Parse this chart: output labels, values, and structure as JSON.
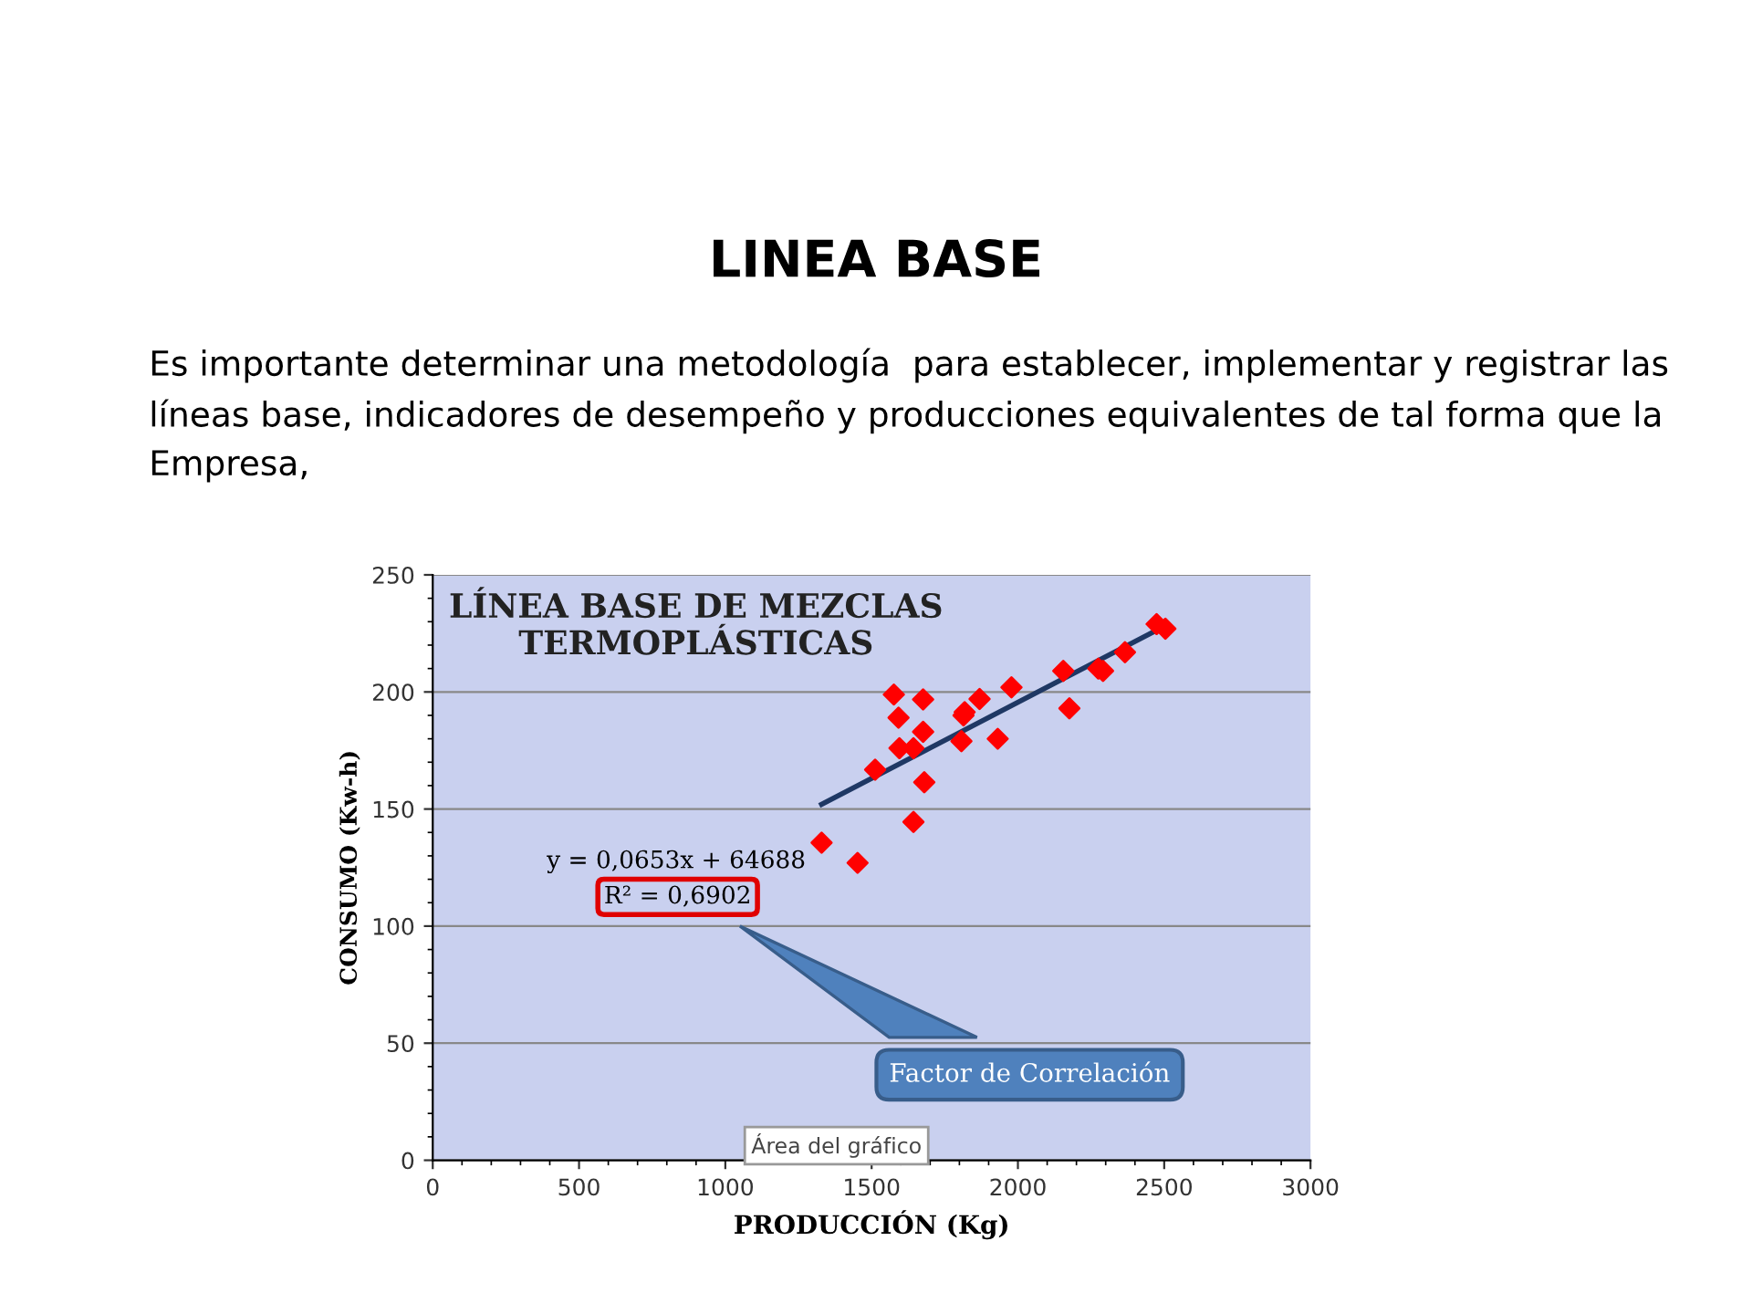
{
  "chart_data": {
    "type": "scatter",
    "title": "LÍNEA BASE DE MEZCLAS\nTERMOPLÁSTICAS",
    "xlabel": "PRODUCCIÓN (Kg)",
    "ylabel": "CONSUMO (Kw-h)",
    "annotations": [
      "LINEA BASE",
      "Es importante determinar una metodología  para establecer, implementar y registrar las líneas base, indicadores de desempeño y producciones equivalentes de tal forma que la Empresa,",
      "y = 0,0653x + 64688",
      "R² = 0,6902",
      "Factor de Correlación",
      "Área del gráfico"
    ],
    "series": [
      {
        "color": "#ff0000",
        "marker": "diamond",
        "x": [
          1329,
          1452,
          1512,
          1576,
          1592,
          1595,
          1643,
          1643,
          1676,
          1676,
          1680,
          1807,
          1814,
          1818,
          1869,
          1931,
          1978,
          2155,
          2176,
          2275,
          2291,
          2366,
          2474,
          2504
        ],
        "values": [
          135.6,
          127,
          166.8,
          198.9,
          189,
          176,
          176,
          144.5,
          196.8,
          183,
          161.4,
          179,
          190,
          191.4,
          197,
          180,
          202,
          209,
          193,
          210,
          209,
          217,
          229,
          227
        ]
      },
      {
        "type": "line",
        "color": "#1f3864",
        "marker": "none",
        "line_style": "solid",
        "x": [
          1329,
          2499
        ],
        "values": [
          152,
          228
        ]
      }
    ],
    "xlim": [
      0,
      3000
    ],
    "ylim": [
      0,
      250
    ],
    "xticks": [
      0,
      500,
      1000,
      1500,
      2000,
      2500,
      3000
    ],
    "yticks": [
      0,
      50,
      100,
      150,
      200,
      250
    ],
    "grid": "y"
  }
}
